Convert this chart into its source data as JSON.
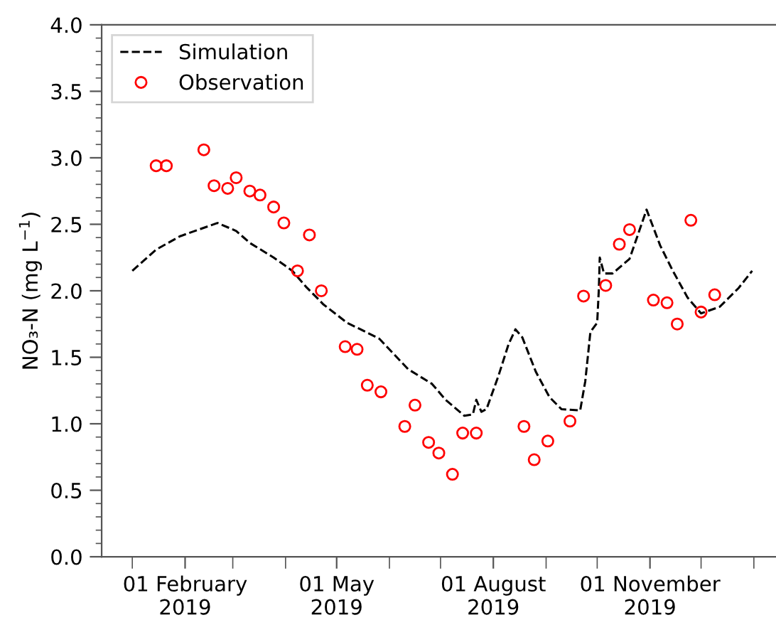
{
  "chart_data": {
    "type": "line",
    "ylabel": "NO₃-N (mg L$^{−1}$)",
    "xlim": [
      "2018-12-14",
      "2020-01-14"
    ],
    "ylim": [
      0,
      4
    ],
    "xticks": [
      {
        "value": "2019-01-01",
        "label": null
      },
      {
        "value": "2019-02-01",
        "label": "01 February\n2019"
      },
      {
        "value": "2019-03-01",
        "label": null
      },
      {
        "value": "2019-04-01",
        "label": null
      },
      {
        "value": "2019-05-01",
        "label": "01 May\n2019"
      },
      {
        "value": "2019-06-01",
        "label": null
      },
      {
        "value": "2019-07-01",
        "label": null
      },
      {
        "value": "2019-08-01",
        "label": "01 August\n2019"
      },
      {
        "value": "2019-09-01",
        "label": null
      },
      {
        "value": "2019-10-01",
        "label": null
      },
      {
        "value": "2019-11-01",
        "label": "01 November\n2019"
      },
      {
        "value": "2019-12-01",
        "label": null
      },
      {
        "value": "2020-01-01",
        "label": null
      }
    ],
    "yticks": [
      {
        "value": 0,
        "label": "0.0"
      },
      {
        "value": 0.1,
        "label": null
      },
      {
        "value": 0.2,
        "label": null
      },
      {
        "value": 0.3,
        "label": null
      },
      {
        "value": 0.4,
        "label": null
      },
      {
        "value": 0.5,
        "label": "0.5"
      },
      {
        "value": 0.6,
        "label": null
      },
      {
        "value": 0.7,
        "label": null
      },
      {
        "value": 0.8,
        "label": null
      },
      {
        "value": 0.9,
        "label": null
      },
      {
        "value": 1,
        "label": "1.0"
      },
      {
        "value": 1.1,
        "label": null
      },
      {
        "value": 1.2,
        "label": null
      },
      {
        "value": 1.3,
        "label": null
      },
      {
        "value": 1.4,
        "label": null
      },
      {
        "value": 1.5,
        "label": "1.5"
      },
      {
        "value": 1.6,
        "label": null
      },
      {
        "value": 1.7,
        "label": null
      },
      {
        "value": 1.8,
        "label": null
      },
      {
        "value": 1.9,
        "label": null
      },
      {
        "value": 2,
        "label": "2.0"
      },
      {
        "value": 2.1,
        "label": null
      },
      {
        "value": 2.2,
        "label": null
      },
      {
        "value": 2.3,
        "label": null
      },
      {
        "value": 2.4,
        "label": null
      },
      {
        "value": 2.5,
        "label": "2.5"
      },
      {
        "value": 2.6,
        "label": null
      },
      {
        "value": 2.7,
        "label": null
      },
      {
        "value": 2.8,
        "label": null
      },
      {
        "value": 2.9,
        "label": null
      },
      {
        "value": 3,
        "label": "3.0"
      },
      {
        "value": 3.1,
        "label": null
      },
      {
        "value": 3.2,
        "label": null
      },
      {
        "value": 3.3,
        "label": null
      },
      {
        "value": 3.4,
        "label": null
      },
      {
        "value": 3.5,
        "label": "3.5"
      },
      {
        "value": 3.6,
        "label": null
      },
      {
        "value": 3.7,
        "label": null
      },
      {
        "value": 3.8,
        "label": null
      },
      {
        "value": 3.9,
        "label": null
      },
      {
        "value": 4,
        "label": "4.0"
      }
    ],
    "grid": false,
    "legend": "top left",
    "series": [
      {
        "name": "Simulation",
        "color": "#000000",
        "line_style": "dashed",
        "marker": "none",
        "x": [
          "2019-01-01",
          "2019-01-15",
          "2019-01-29",
          "2019-02-20",
          "2019-03-03",
          "2019-03-11",
          "2019-03-25",
          "2019-04-05",
          "2019-04-13",
          "2019-04-20",
          "2019-04-23",
          "2019-05-07",
          "2019-05-15",
          "2019-05-26",
          "2019-06-12",
          "2019-06-26",
          "2019-07-04",
          "2019-07-15",
          "2019-07-20",
          "2019-07-22",
          "2019-07-25",
          "2019-07-28",
          "2019-08-04",
          "2019-08-10",
          "2019-08-14",
          "2019-08-18",
          "2019-08-26",
          "2019-09-03",
          "2019-09-10",
          "2019-09-21",
          "2019-09-24",
          "2019-09-27",
          "2019-10-01",
          "2019-10-02",
          "2019-10-02T12:00",
          "2019-10-05",
          "2019-10-10",
          "2019-10-20",
          "2019-10-30",
          "2019-11-07",
          "2019-11-14",
          "2019-11-23",
          "2019-12-01",
          "2019-12-12",
          "2019-12-23",
          "2019-12-31"
        ],
        "values": [
          2.15,
          2.31,
          2.41,
          2.51,
          2.45,
          2.36,
          2.25,
          2.15,
          2.03,
          1.94,
          1.9,
          1.76,
          1.71,
          1.64,
          1.41,
          1.3,
          1.18,
          1.06,
          1.07,
          1.18,
          1.09,
          1.11,
          1.36,
          1.6,
          1.71,
          1.65,
          1.39,
          1.2,
          1.11,
          1.1,
          1.32,
          1.69,
          1.76,
          2.02,
          2.25,
          2.13,
          2.13,
          2.24,
          2.61,
          2.34,
          2.16,
          1.95,
          1.83,
          1.88,
          2.02,
          2.15
        ]
      },
      {
        "name": "Observation",
        "type": "scatter",
        "color": "#ff0000",
        "marker": "circle",
        "x": [
          "2019-01-15",
          "2019-01-21",
          "2019-02-12",
          "2019-02-18",
          "2019-02-26",
          "2019-03-03",
          "2019-03-11",
          "2019-03-17",
          "2019-03-25",
          "2019-03-31",
          "2019-04-15",
          "2019-04-08",
          "2019-04-22",
          "2019-05-06",
          "2019-05-13",
          "2019-05-19",
          "2019-05-27",
          "2019-06-10",
          "2019-06-16",
          "2019-06-24",
          "2019-06-30",
          "2019-07-08",
          "2019-07-14",
          "2019-07-22",
          "2019-08-19",
          "2019-08-25",
          "2019-09-02",
          "2019-09-15",
          "2019-09-23",
          "2019-10-06",
          "2019-10-14",
          "2019-10-20",
          "2019-11-03",
          "2019-11-11",
          "2019-11-17",
          "2019-11-25",
          "2019-12-01",
          "2019-12-09"
        ],
        "values": [
          2.94,
          2.94,
          3.06,
          2.79,
          2.77,
          2.85,
          2.75,
          2.72,
          2.63,
          2.51,
          2.42,
          2.15,
          2.0,
          1.58,
          1.56,
          1.29,
          1.24,
          0.98,
          1.14,
          0.86,
          0.78,
          0.62,
          0.93,
          0.93,
          0.98,
          0.73,
          0.87,
          1.02,
          1.96,
          2.04,
          2.35,
          2.46,
          1.93,
          1.91,
          1.75,
          2.53,
          1.84,
          1.97
        ]
      }
    ]
  }
}
